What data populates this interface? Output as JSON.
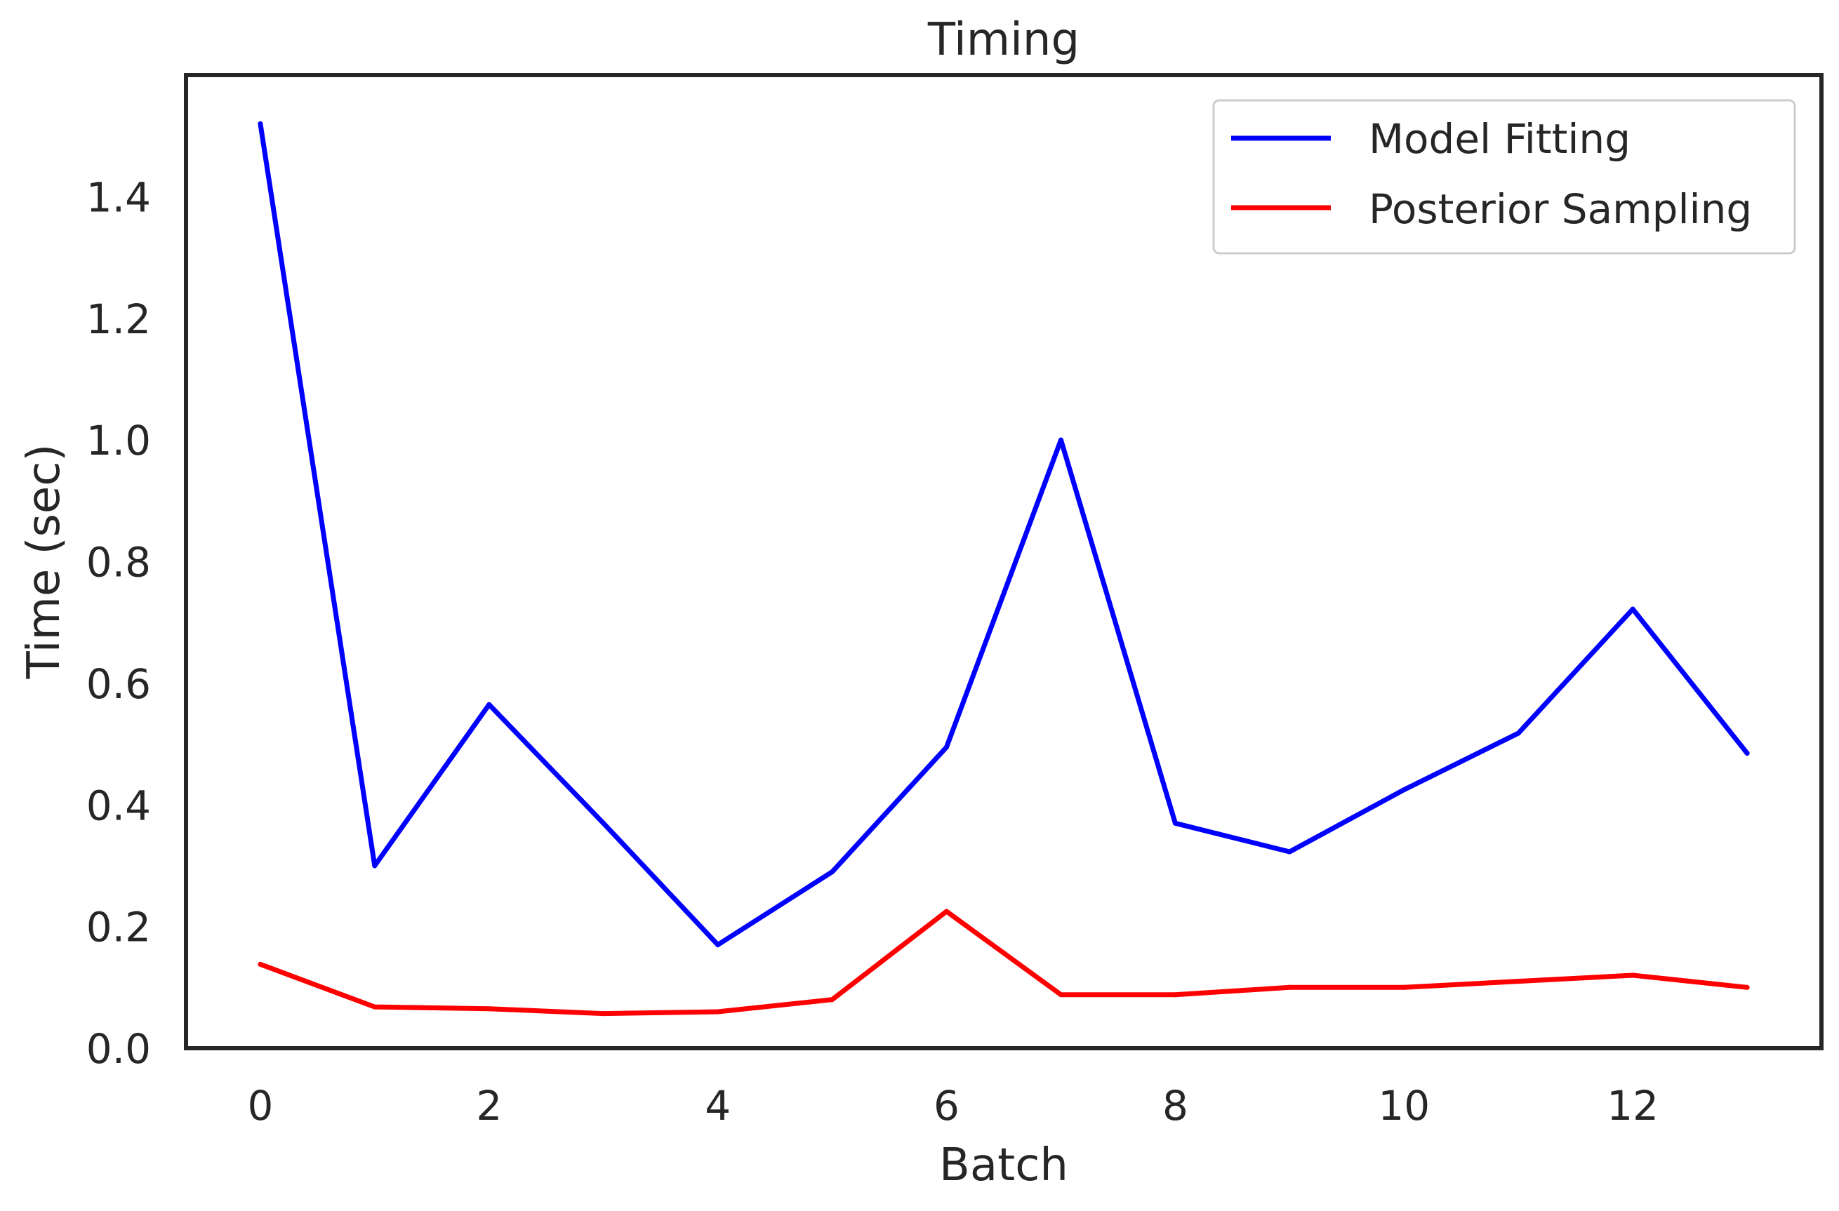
{
  "chart_data": {
    "type": "line",
    "title": "Timing",
    "xlabel": "Batch",
    "ylabel": "Time (sec)",
    "x": [
      0,
      1,
      2,
      3,
      4,
      5,
      6,
      7,
      8,
      9,
      10,
      11,
      12,
      13
    ],
    "xlim": [
      -0.65,
      13.65
    ],
    "ylim": [
      0.0,
      1.6
    ],
    "xticks": [
      0,
      2,
      4,
      6,
      8,
      10,
      12
    ],
    "yticks": [
      0.0,
      0.2,
      0.4,
      0.6,
      0.8,
      1.0,
      1.2,
      1.4
    ],
    "grid": false,
    "legend_position": "top-right",
    "series": [
      {
        "name": "Model Fitting",
        "color": "#0000ff",
        "values": [
          1.52,
          0.3,
          0.565,
          0.37,
          0.17,
          0.29,
          0.495,
          1.0,
          0.37,
          0.323,
          0.425,
          0.518,
          0.722,
          0.485
        ]
      },
      {
        "name": "Posterior Sampling",
        "color": "#ff0000",
        "values": [
          0.138,
          0.068,
          0.065,
          0.057,
          0.06,
          0.08,
          0.225,
          0.088,
          0.088,
          0.1,
          0.1,
          0.11,
          0.12,
          0.1
        ]
      }
    ]
  }
}
